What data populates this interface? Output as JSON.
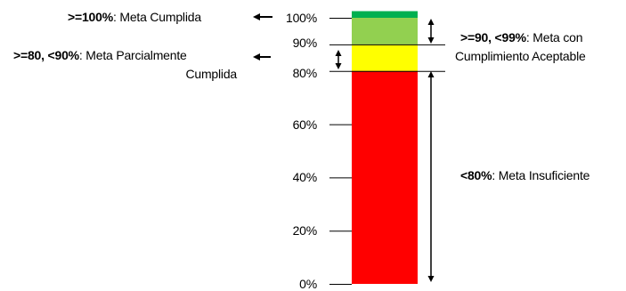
{
  "scale": {
    "ticks": [
      {
        "label": "100%",
        "value": 100
      },
      {
        "label": "90%",
        "value": 90
      },
      {
        "label": "80%",
        "value": 80
      },
      {
        "label": "60%",
        "value": 60
      },
      {
        "label": "40%",
        "value": 40
      },
      {
        "label": "20%",
        "value": 20
      },
      {
        "label": "0%",
        "value": 0
      }
    ]
  },
  "bands": [
    {
      "name": "meta-cumplida",
      "from": 100,
      "to": 102.5,
      "color": "#00b050"
    },
    {
      "name": "cumplimiento-aceptable",
      "from": 90,
      "to": 100,
      "color": "#92d050"
    },
    {
      "name": "parcialmente-cumplida",
      "from": 80,
      "to": 90,
      "color": "#ffff00"
    },
    {
      "name": "insuficiente",
      "from": 0,
      "to": 80,
      "color": "#ff0000"
    }
  ],
  "annotations": {
    "cumplida": {
      "cond": ">=100%",
      "sep": ":",
      "text": " Meta Cumplida"
    },
    "parcial": {
      "cond": ">=80, <90%",
      "sep": ":",
      "text": " Meta Parcialmente",
      "text2": "Cumplida"
    },
    "aceptable": {
      "cond": ">=90, <99%",
      "sep": ":",
      "text": " Meta con",
      "text2": "Cumplimiento  Aceptable"
    },
    "insuficiente": {
      "cond": "<80%",
      "sep": ":",
      "text": " Meta Insuficiente"
    }
  }
}
